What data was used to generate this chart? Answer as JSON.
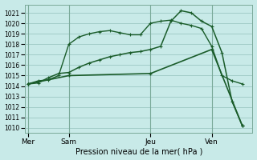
{
  "background_color": "#c8eae8",
  "grid_color": "#9cc8c4",
  "line_color": "#1a5c2a",
  "axis_color": "#7aaa99",
  "xlabel": "Pression niveau de la mer( hPa )",
  "ylim": [
    1009.5,
    1021.8
  ],
  "yticks": [
    1010,
    1011,
    1012,
    1013,
    1014,
    1015,
    1016,
    1017,
    1018,
    1019,
    1020,
    1021
  ],
  "day_labels": [
    "Mer",
    "Sam",
    "Jeu",
    "Ven"
  ],
  "day_positions": [
    0,
    4,
    12,
    18
  ],
  "xlim": [
    -0.3,
    22
  ],
  "series1_x": [
    0,
    1,
    2,
    3,
    4,
    5,
    6,
    7,
    8,
    9,
    10,
    11,
    12,
    13,
    14,
    15,
    16,
    17,
    18,
    19,
    20,
    21
  ],
  "series1_y": [
    1014.2,
    1014.5,
    1014.6,
    1015.0,
    1018.0,
    1018.7,
    1019.0,
    1019.2,
    1019.3,
    1019.1,
    1018.9,
    1018.9,
    1020.0,
    1020.2,
    1020.3,
    1020.0,
    1019.8,
    1019.5,
    1017.8,
    1015.0,
    1014.5,
    1014.2
  ],
  "series2_x": [
    0,
    1,
    2,
    3,
    4,
    5,
    6,
    7,
    8,
    9,
    10,
    11,
    12,
    13,
    14,
    15,
    16,
    17,
    18,
    19,
    20,
    21
  ],
  "series2_y": [
    1014.2,
    1014.3,
    1014.8,
    1015.2,
    1015.3,
    1015.8,
    1016.2,
    1016.5,
    1016.8,
    1017.0,
    1017.2,
    1017.3,
    1017.5,
    1017.8,
    1020.2,
    1021.2,
    1021.0,
    1020.2,
    1019.7,
    1017.2,
    1012.5,
    1010.2
  ],
  "series3_x": [
    0,
    4,
    12,
    18,
    21
  ],
  "series3_y": [
    1014.2,
    1015.0,
    1015.2,
    1017.5,
    1010.2
  ]
}
